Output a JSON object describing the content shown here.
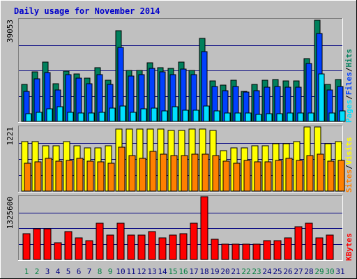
{
  "chart_data": {
    "type": "bar",
    "title": "Daily usage for November 2014",
    "categories": [
      "1",
      "2",
      "3",
      "4",
      "5",
      "6",
      "7",
      "8",
      "9",
      "10",
      "11",
      "12",
      "13",
      "14",
      "15",
      "16",
      "17",
      "18",
      "19",
      "20",
      "21",
      "22",
      "23",
      "24",
      "25",
      "26",
      "27",
      "28",
      "29",
      "30",
      "31"
    ],
    "weekend_categories": [
      "1",
      "2",
      "8",
      "9",
      "15",
      "16",
      "22",
      "23",
      "29",
      "30"
    ],
    "colors": {
      "title": "#0000cc",
      "hits": "#00805c",
      "files": "#0040ff",
      "pages": "#00e0ff",
      "visits": "#ffff00",
      "sites": "#ff8000",
      "kbytes": "#ff0000",
      "weekday_label": "#000080",
      "weekend_label": "#008040"
    },
    "panels": [
      {
        "name": "hits-files-pages",
        "max_label": "39053",
        "ylim": [
          0,
          39053
        ],
        "legend": [
          {
            "text": "Hits",
            "color": "#00805c"
          },
          {
            "text": "Files",
            "color": "#0040ff"
          },
          {
            "text": "Pages",
            "color": "#00e0ff"
          }
        ],
        "series": [
          {
            "name": "Hits",
            "color": "#00805c",
            "values": [
              14100,
              19000,
              22800,
              14500,
              19200,
              18200,
              16500,
              20500,
              15700,
              34800,
              19500,
              19500,
              22500,
              20700,
              20400,
              22700,
              19500,
              31800,
              15500,
              13800,
              15700,
              11400,
              14200,
              15700,
              16000,
              15500,
              15500,
              24200,
              38700,
              14200,
              16000
            ]
          },
          {
            "name": "Files",
            "color": "#0040ff",
            "values": [
              11400,
              16200,
              18600,
              12000,
              18000,
              16500,
              14400,
              18000,
              14200,
              28400,
              17500,
              17800,
              20200,
              19000,
              18000,
              20000,
              18000,
              26800,
              13500,
              11800,
              13500,
              11300,
              11800,
              13200,
              13500,
              13200,
              13200,
              22200,
              33800,
              12000,
              13500
            ]
          },
          {
            "name": "Pages",
            "color": "#00e0ff",
            "values": [
              2900,
              3400,
              4700,
              5500,
              3600,
              3200,
              3200,
              3600,
              5100,
              5900,
              3500,
              4900,
              5000,
              3900,
              5700,
              4400,
              4200,
              5900,
              3900,
              3300,
              3200,
              3200,
              2800,
              3000,
              3000,
              3200,
              3200,
              3200,
              18100,
              3200,
              4000
            ]
          }
        ]
      },
      {
        "name": "visits-sites",
        "max_label": "1221",
        "ylim": [
          0,
          1221
        ],
        "legend": [
          {
            "text": "Visits",
            "color": "#ffff00"
          },
          {
            "text": "Sites",
            "color": "#ff8000"
          }
        ],
        "series": [
          {
            "name": "Visits",
            "color": "#ffff00",
            "values": [
              945,
              945,
              860,
              860,
              945,
              860,
              819,
              819,
              860,
              1180,
              1180,
              1180,
              1180,
              1180,
              1160,
              1160,
              1180,
              1180,
              1160,
              775,
              819,
              819,
              860,
              860,
              903,
              903,
              945,
              1221,
              1221,
              903,
              945
            ]
          },
          {
            "name": "Sites",
            "color": "#ff8000",
            "values": [
              533,
              560,
              620,
              575,
              580,
              620,
              567,
              560,
              533,
              840,
              675,
              620,
              760,
              700,
              675,
              675,
              700,
              700,
              675,
              575,
              533,
              580,
              560,
              560,
              587,
              620,
              580,
              675,
              700,
              575,
              580
            ]
          }
        ]
      },
      {
        "name": "kbytes",
        "max_label": "1325600",
        "ylim": [
          0,
          1325600
        ],
        "legend": [
          {
            "text": "KBytes",
            "color": "#ff0000"
          }
        ],
        "series": [
          {
            "name": "KBytes",
            "color": "#ff0000",
            "values": [
              545000,
              650000,
              650000,
              360000,
              590000,
              450000,
              400000,
              765000,
              510000,
              765000,
              510000,
              510000,
              590000,
              450000,
              510000,
              545000,
              765000,
              1325600,
              430000,
              330000,
              330000,
              330000,
              330000,
              400000,
              400000,
              450000,
              690000,
              765000,
              450000,
              510000,
              0
            ]
          }
        ]
      }
    ]
  }
}
